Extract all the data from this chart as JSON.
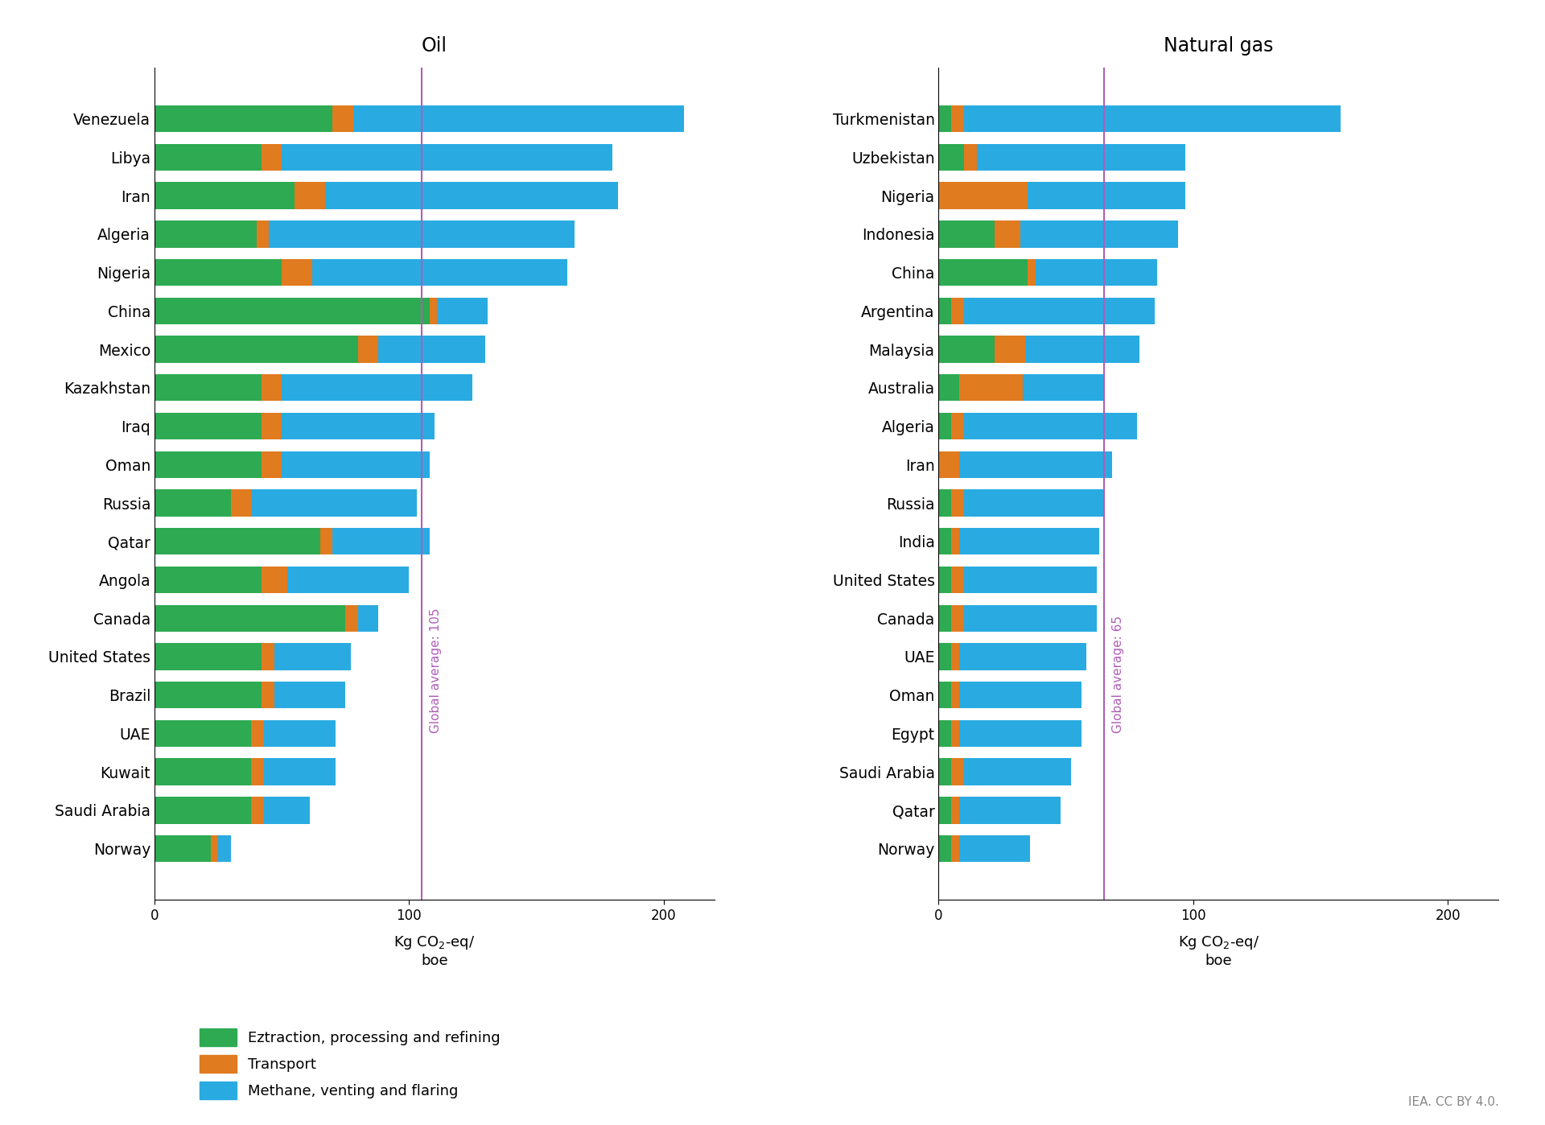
{
  "oil_countries": [
    "Venezuela",
    "Libya",
    "Iran",
    "Algeria",
    "Nigeria",
    "China",
    "Mexico",
    "Kazakhstan",
    "Iraq",
    "Oman",
    "Russia",
    "Qatar",
    "Angola",
    "Canada",
    "United States",
    "Brazil",
    "UAE",
    "Kuwait",
    "Saudi Arabia",
    "Norway"
  ],
  "oil_extraction": [
    70,
    42,
    55,
    40,
    50,
    108,
    80,
    42,
    42,
    42,
    30,
    65,
    42,
    75,
    42,
    42,
    38,
    38,
    38,
    22
  ],
  "oil_transport": [
    8,
    8,
    12,
    5,
    12,
    3,
    8,
    8,
    8,
    8,
    8,
    5,
    10,
    5,
    5,
    5,
    5,
    5,
    5,
    3
  ],
  "oil_methane": [
    130,
    130,
    115,
    120,
    100,
    20,
    42,
    75,
    60,
    58,
    65,
    38,
    48,
    8,
    30,
    28,
    28,
    28,
    18,
    5
  ],
  "oil_global_avg": 105,
  "gas_countries": [
    "Turkmenistan",
    "Uzbekistan",
    "Nigeria",
    "Indonesia",
    "China",
    "Argentina",
    "Malaysia",
    "Australia",
    "Algeria",
    "Iran",
    "Russia",
    "India",
    "United States",
    "Canada",
    "UAE",
    "Oman",
    "Egypt",
    "Saudi Arabia",
    "Qatar",
    "Norway"
  ],
  "gas_extraction": [
    5,
    10,
    0,
    22,
    35,
    5,
    22,
    8,
    5,
    0,
    5,
    5,
    5,
    5,
    5,
    5,
    5,
    5,
    5,
    5
  ],
  "gas_transport": [
    5,
    5,
    35,
    10,
    3,
    5,
    12,
    25,
    5,
    8,
    5,
    3,
    5,
    5,
    3,
    3,
    3,
    5,
    3,
    3
  ],
  "gas_methane": [
    148,
    82,
    62,
    62,
    48,
    75,
    45,
    32,
    68,
    60,
    55,
    55,
    52,
    52,
    50,
    48,
    48,
    42,
    40,
    28
  ],
  "gas_global_avg": 65,
  "color_extraction": "#2eaa52",
  "color_transport": "#e07b20",
  "color_methane": "#29abe2",
  "color_global_avg": "#b05db8",
  "title_oil": "Oil",
  "title_gas": "Natural gas",
  "legend_labels": [
    "Eztraction, processing and refining",
    "Transport",
    "Methane, venting and flaring"
  ],
  "source_text": "IEA. CC BY 4.0.",
  "bar_height": 0.7
}
